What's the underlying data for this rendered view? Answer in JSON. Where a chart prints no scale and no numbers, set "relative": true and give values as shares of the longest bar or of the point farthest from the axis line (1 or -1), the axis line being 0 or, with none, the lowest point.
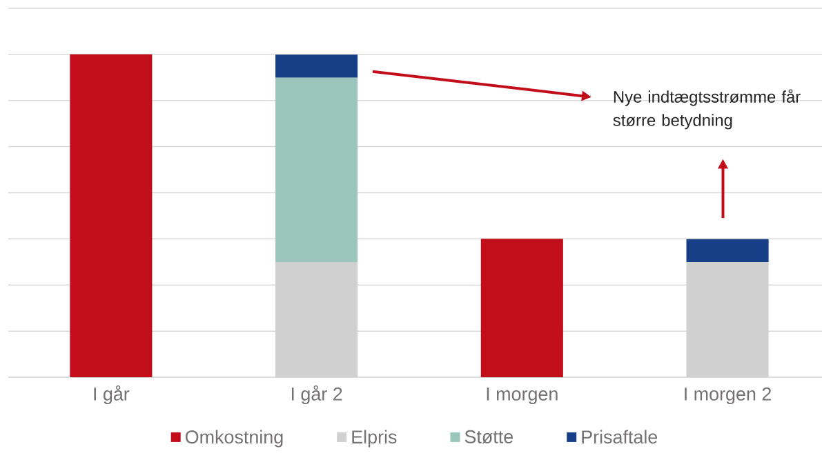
{
  "chart_data": {
    "type": "bar",
    "stacked": true,
    "relative": true,
    "grid": "y",
    "legend": "bottom",
    "categories": [
      "I går",
      "I går 2",
      "I morgen",
      "I morgen 2"
    ],
    "series": [
      {
        "name": "Omkostning",
        "color": "#c20e1a",
        "values": [
          1,
          null,
          0.429,
          null
        ]
      },
      {
        "name": "Elpris",
        "color": "#d0d0d0",
        "values": [
          null,
          0.357,
          null,
          0.357
        ]
      },
      {
        "name": "Støtte",
        "color": "#9bc6bb",
        "values": [
          null,
          0.571,
          null,
          null
        ]
      },
      {
        "name": "Prisaftale",
        "color": "#163f87",
        "values": [
          null,
          0.071,
          null,
          0.071
        ]
      }
    ],
    "annotations": [
      "Nye indtægtsstrømme får større betydning"
    ]
  }
}
